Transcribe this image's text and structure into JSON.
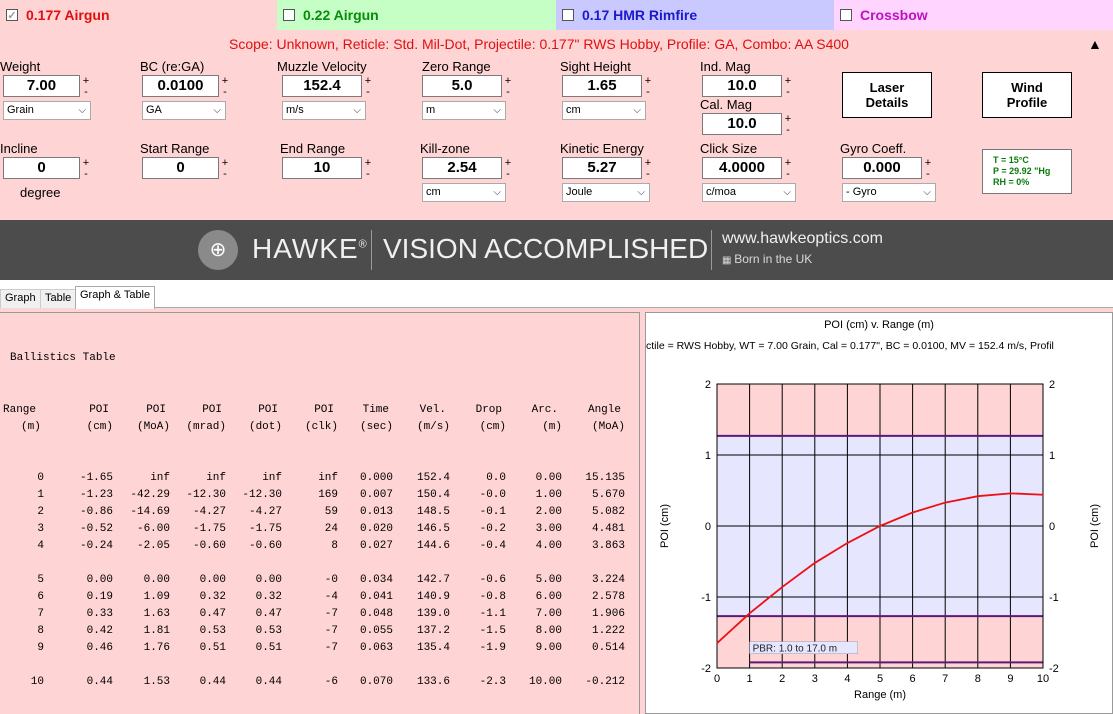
{
  "profile_tabs": [
    {
      "label": "0.177 Airgun",
      "checked": true
    },
    {
      "label": "0.22 Airgun",
      "checked": false
    },
    {
      "label": "0.17 HMR Rimfire",
      "checked": false
    },
    {
      "label": "Crossbow",
      "checked": false
    }
  ],
  "scope_line": "Scope: Unknown, Reticle: Std. Mil-Dot, Projectile: 0.177\" RWS Hobby, Profile: GA, Combo: AA S400",
  "collapse_icon": "▲",
  "fields_row1": {
    "weight": {
      "label": "Weight",
      "value": "7.00",
      "unit": "Grain"
    },
    "bc": {
      "label": "BC (re:GA)",
      "value": "0.0100",
      "unit": "GA"
    },
    "muzzle_velocity": {
      "label": "Muzzle Velocity",
      "value": "152.4",
      "unit": "m/s"
    },
    "zero_range": {
      "label": "Zero Range",
      "value": "5.0",
      "unit": "m"
    },
    "sight_height": {
      "label": "Sight Height",
      "value": "1.65",
      "unit": "cm"
    },
    "ind_mag": {
      "label": "Ind. Mag",
      "value": "10.0"
    },
    "cal_mag": {
      "label": "Cal. Mag",
      "value": "10.0"
    }
  },
  "fields_row2": {
    "incline": {
      "label": "Incline",
      "value": "0",
      "unit": "degree"
    },
    "start_range": {
      "label": "Start Range",
      "value": "0"
    },
    "end_range": {
      "label": "End Range",
      "value": "10"
    },
    "kill_zone": {
      "label": "Kill-zone",
      "value": "2.54",
      "unit": "cm"
    },
    "kinetic_energy": {
      "label": "Kinetic Energy",
      "value": "5.27",
      "unit": "Joule"
    },
    "click_size": {
      "label": "Click Size",
      "value": "4.0000",
      "unit": "c/moa"
    },
    "gyro": {
      "label": "Gyro Coeff.",
      "value": "0.000",
      "unit": "- Gyro"
    }
  },
  "plus": "+",
  "minus": "-",
  "buttons": {
    "laser": "Laser Details",
    "wind": "Wind Profile"
  },
  "atmos": {
    "temp": "T = 15°C",
    "pressure": "P = 29.92 \"Hg",
    "rh": "RH = 0%"
  },
  "banner": {
    "brand": "HAWKE",
    "brand_mark": "®",
    "slogan": "VISION ACCOMPLISHED",
    "url": "www.hawkeoptics.com",
    "born": "Born in the UK"
  },
  "view_tabs": [
    "Graph",
    "Table",
    "Graph & Table"
  ],
  "table": {
    "title": "Ballistics Table",
    "headers": [
      [
        "Range",
        "(m)"
      ],
      [
        "POI",
        "(cm)"
      ],
      [
        "POI",
        "(MoA)"
      ],
      [
        "POI",
        "(mrad)"
      ],
      [
        "POI",
        "(dot)"
      ],
      [
        "POI",
        "(clk)"
      ],
      [
        "Time",
        "(sec)"
      ],
      [
        "Vel.",
        "(m/s)"
      ],
      [
        "Drop",
        "(cm)"
      ],
      [
        "Arc.",
        "(m)"
      ],
      [
        "Angle",
        "(MoA)"
      ]
    ],
    "rows": [
      [
        "0",
        "-1.65",
        "inf",
        "inf",
        "inf",
        "inf",
        "0.000",
        "152.4",
        "0.0",
        "0.00",
        "15.135"
      ],
      [
        "1",
        "-1.23",
        "-42.29",
        "-12.30",
        "-12.30",
        "169",
        "0.007",
        "150.4",
        "-0.0",
        "1.00",
        "5.670"
      ],
      [
        "2",
        "-0.86",
        "-14.69",
        "-4.27",
        "-4.27",
        "59",
        "0.013",
        "148.5",
        "-0.1",
        "2.00",
        "5.082"
      ],
      [
        "3",
        "-0.52",
        "-6.00",
        "-1.75",
        "-1.75",
        "24",
        "0.020",
        "146.5",
        "-0.2",
        "3.00",
        "4.481"
      ],
      [
        "4",
        "-0.24",
        "-2.05",
        "-0.60",
        "-0.60",
        "8",
        "0.027",
        "144.6",
        "-0.4",
        "4.00",
        "3.863"
      ],
      [
        "5",
        "0.00",
        "0.00",
        "0.00",
        "0.00",
        "-0",
        "0.034",
        "142.7",
        "-0.6",
        "5.00",
        "3.224"
      ],
      [
        "6",
        "0.19",
        "1.09",
        "0.32",
        "0.32",
        "-4",
        "0.041",
        "140.9",
        "-0.8",
        "6.00",
        "2.578"
      ],
      [
        "7",
        "0.33",
        "1.63",
        "0.47",
        "0.47",
        "-7",
        "0.048",
        "139.0",
        "-1.1",
        "7.00",
        "1.906"
      ],
      [
        "8",
        "0.42",
        "1.81",
        "0.53",
        "0.53",
        "-7",
        "0.055",
        "137.2",
        "-1.5",
        "8.00",
        "1.222"
      ],
      [
        "9",
        "0.46",
        "1.76",
        "0.51",
        "0.51",
        "-7",
        "0.063",
        "135.4",
        "-1.9",
        "9.00",
        "0.514"
      ],
      [
        "10",
        "0.44",
        "1.53",
        "0.44",
        "0.44",
        "-6",
        "0.070",
        "133.6",
        "-2.3",
        "10.00",
        "-0.212"
      ]
    ]
  },
  "chart_data": {
    "type": "line",
    "title": "POI (cm) v. Range (m)",
    "subtitle": "ctile = RWS Hobby, WT = 7.00 Grain, Cal = 0.177\", BC = 0.0100, MV = 152.4 m/s, Profil",
    "xlabel": "Range (m)",
    "ylabel": "POI (cm)",
    "xlim": [
      0,
      10
    ],
    "ylim": [
      -2,
      2
    ],
    "xticks": [
      0,
      1,
      2,
      3,
      4,
      5,
      6,
      7,
      8,
      9,
      10
    ],
    "yticks": [
      -2,
      -1,
      0,
      1,
      2
    ],
    "grid": true,
    "series": [
      {
        "x": [
          0,
          1,
          2,
          3,
          4,
          5,
          6,
          7,
          8,
          9,
          10
        ],
        "values": [
          -1.65,
          -1.23,
          -0.86,
          -0.52,
          -0.24,
          0.0,
          0.19,
          0.33,
          0.42,
          0.46,
          0.44
        ]
      }
    ],
    "kill_zone_lines": [
      1.27,
      -1.27
    ],
    "pbr_label": "PBR: 1.0 to 17.0 m",
    "colors": {
      "trajectory": "#ee1111",
      "killzone": "#5a1a7a",
      "band": "#e6e6ff",
      "lower_bg": "#ffd4d4"
    }
  }
}
